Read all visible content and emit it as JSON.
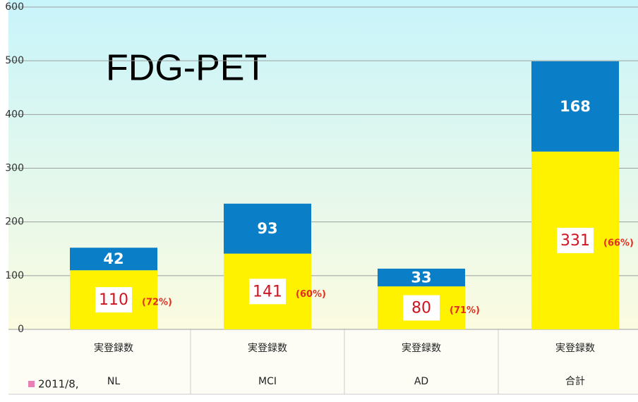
{
  "chart_data": {
    "type": "stacked_bar",
    "annotation_title": "FDG-PET",
    "categories": [
      "NL",
      "MCI",
      "AD",
      "合計"
    ],
    "category_group_labels": [
      "実登録数",
      "実登録数",
      "実登録数",
      "実登録数"
    ],
    "series": [
      {
        "color": "#fff200",
        "values": [
          110,
          141,
          80,
          331
        ]
      },
      {
        "color": "#0a7fc8",
        "values": [
          42,
          93,
          33,
          168
        ]
      }
    ],
    "percent_labels": [
      "(72%)",
      "(60%)",
      "(71%)",
      "(66%)"
    ],
    "ylim": [
      0,
      600
    ],
    "yticks": [
      0,
      100,
      200,
      300,
      400,
      500,
      600
    ],
    "grid": true,
    "legend_text": "2011/8,",
    "legend_color": "#e87fb5"
  }
}
